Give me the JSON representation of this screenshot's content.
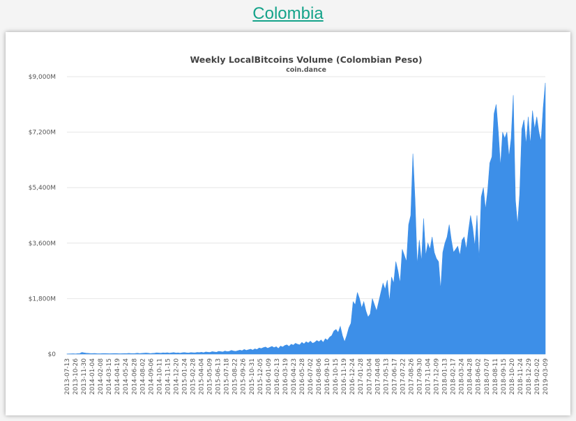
{
  "page": {
    "heading": "Colombia"
  },
  "chart_data": {
    "type": "area",
    "title": "Weekly LocalBitcoins Volume (Colombian Peso)",
    "subtitle": "coin.dance",
    "xlabel": "",
    "ylabel": "",
    "ylim": [
      0,
      9000
    ],
    "y_unit": "M COP",
    "y_ticks": [
      "$0",
      "$1,800M",
      "$3,600M",
      "$5,400M",
      "$7,200M",
      "$9,000M"
    ],
    "grid": true,
    "legend": "none",
    "series_color": "#3d8fe8",
    "x_tick_labels": [
      "2013-07-13",
      "2013-10-26",
      "2013-11-30",
      "2014-01-04",
      "2014-02-08",
      "2014-03-15",
      "2014-04-19",
      "2014-05-24",
      "2014-06-28",
      "2014-08-02",
      "2014-09-06",
      "2014-10-11",
      "2014-11-15",
      "2014-12-20",
      "2015-01-24",
      "2015-02-28",
      "2015-04-04",
      "2015-05-09",
      "2015-06-13",
      "2015-07-18",
      "2015-08-22",
      "2015-09-26",
      "2015-10-31",
      "2015-12-05",
      "2016-01-09",
      "2016-02-13",
      "2016-03-19",
      "2016-04-23",
      "2016-05-28",
      "2016-07-02",
      "2016-08-06",
      "2016-09-10",
      "2016-10-15",
      "2016-11-19",
      "2016-12-24",
      "2017-01-28",
      "2017-03-04",
      "2017-04-08",
      "2017-05-13",
      "2017-06-17",
      "2017-07-22",
      "2017-08-26",
      "2017-09-30",
      "2017-11-04",
      "2017-12-09",
      "2018-01-13",
      "2018-02-17",
      "2018-03-24",
      "2018-04-28",
      "2018-06-02",
      "2018-07-07",
      "2018-08-11",
      "2018-09-15",
      "2018-10-20",
      "2018-11-24",
      "2018-12-29",
      "2019-02-02",
      "2019-03-09"
    ],
    "series": [
      {
        "values": [
          5,
          8,
          10,
          12,
          8,
          15,
          20,
          55,
          40,
          30,
          25,
          20,
          18,
          22,
          15,
          12,
          15,
          20,
          18,
          15,
          12,
          15,
          18,
          20,
          15,
          12,
          15,
          18,
          20,
          25,
          18,
          20,
          22,
          30,
          20,
          25,
          30,
          35,
          30,
          20,
          25,
          30,
          40,
          35,
          30,
          40,
          35,
          45,
          30,
          40,
          50,
          35,
          40,
          30,
          45,
          50,
          40,
          35,
          50,
          45,
          40,
          55,
          50,
          60,
          45,
          70,
          60,
          55,
          80,
          70,
          60,
          90,
          80,
          70,
          100,
          80,
          90,
          120,
          100,
          90,
          110,
          130,
          110,
          150,
          120,
          140,
          160,
          130,
          170,
          150,
          200,
          180,
          210,
          230,
          190,
          220,
          250,
          210,
          240,
          180,
          260,
          230,
          280,
          300,
          250,
          320,
          290,
          350,
          320,
          300,
          380,
          330,
          400,
          360,
          420,
          350,
          380,
          440,
          400,
          460,
          380,
          500,
          450,
          550,
          600,
          750,
          800,
          700,
          900,
          600,
          400,
          600,
          850,
          1000,
          1700,
          1600,
          2000,
          1800,
          1500,
          1700,
          1400,
          1200,
          1300,
          1800,
          1600,
          1400,
          1700,
          2000,
          2300,
          2100,
          2400,
          1700,
          2500,
          2300,
          3000,
          2700,
          2300,
          3400,
          3200,
          3000,
          4200,
          4500,
          6500,
          5000,
          2900,
          3700,
          3000,
          4400,
          3200,
          3600,
          3400,
          3800,
          3300,
          3100,
          3000,
          2100,
          3300,
          3600,
          3800,
          4200,
          3700,
          3300,
          3400,
          3500,
          3200,
          3700,
          3800,
          3400,
          4000,
          4500,
          4100,
          3500,
          4500,
          3100,
          5100,
          5400,
          4700,
          5300,
          6200,
          6400,
          7800,
          8100,
          7200,
          6100,
          7200,
          7000,
          7200,
          6400,
          7000,
          8400,
          5000,
          4200,
          5200,
          7300,
          7600,
          6800,
          7700,
          6800,
          7900,
          7300,
          7700,
          7200,
          6900,
          8000,
          8800
        ]
      }
    ]
  }
}
